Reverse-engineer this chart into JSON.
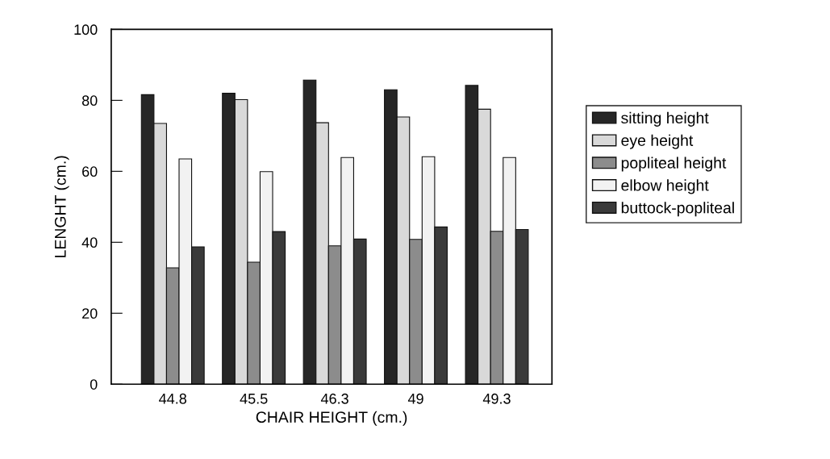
{
  "chart_data": {
    "type": "bar",
    "xlabel": "CHAIR HEIGHT (cm.)",
    "ylabel": "LENGHT (cm.)",
    "categories": [
      "44.8",
      "45.5",
      "46.3",
      "49",
      "49.3"
    ],
    "series": [
      {
        "name": "sitting height",
        "color": "#262626",
        "values": [
          81.6,
          82.0,
          85.7,
          83.0,
          84.2
        ]
      },
      {
        "name": "eye height",
        "color": "#d9d9d9",
        "values": [
          73.5,
          80.2,
          73.7,
          75.3,
          77.5
        ]
      },
      {
        "name": "popliteal height",
        "color": "#8c8c8c",
        "values": [
          32.8,
          34.4,
          39.0,
          40.8,
          43.1
        ]
      },
      {
        "name": "elbow height",
        "color": "#f2f2f2",
        "values": [
          63.5,
          59.9,
          63.9,
          64.1,
          63.9
        ]
      },
      {
        "name": "buttock-popliteal",
        "color": "#3a3a3a",
        "values": [
          38.7,
          43.0,
          40.9,
          44.3,
          43.6
        ]
      }
    ],
    "ylim": [
      0,
      100
    ],
    "yticks": [
      0,
      20,
      40,
      60,
      80,
      100
    ],
    "grid": false,
    "legend": "right"
  }
}
